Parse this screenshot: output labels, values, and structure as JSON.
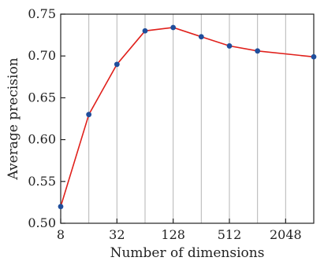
{
  "chart_data": {
    "type": "line",
    "title": "",
    "xlabel": "Number of dimensions",
    "ylabel": "Average precision",
    "x_scale": "log2",
    "xlim": [
      8,
      4096
    ],
    "ylim": [
      0.5,
      0.75
    ],
    "x_ticks": [
      8,
      32,
      128,
      512,
      2048
    ],
    "x_tick_labels": [
      "8",
      "32",
      "128",
      "512",
      "2048"
    ],
    "y_ticks": [
      0.5,
      0.55,
      0.6,
      0.65,
      0.7,
      0.75
    ],
    "y_tick_labels": [
      "0.50",
      "0.55",
      "0.60",
      "0.65",
      "0.70",
      "0.75"
    ],
    "x_gridlines": [
      16,
      32,
      64,
      128,
      256,
      512,
      1024,
      2048
    ],
    "grid": "vertical",
    "legend": "none",
    "line_color": "#e0201b",
    "marker_color": "#1f4e9c",
    "series": [
      {
        "x": [
          8,
          16,
          32,
          64,
          128,
          256,
          512,
          1024,
          4096
        ],
        "y": [
          0.52,
          0.63,
          0.69,
          0.73,
          0.734,
          0.723,
          0.712,
          0.706,
          0.699
        ]
      }
    ]
  }
}
